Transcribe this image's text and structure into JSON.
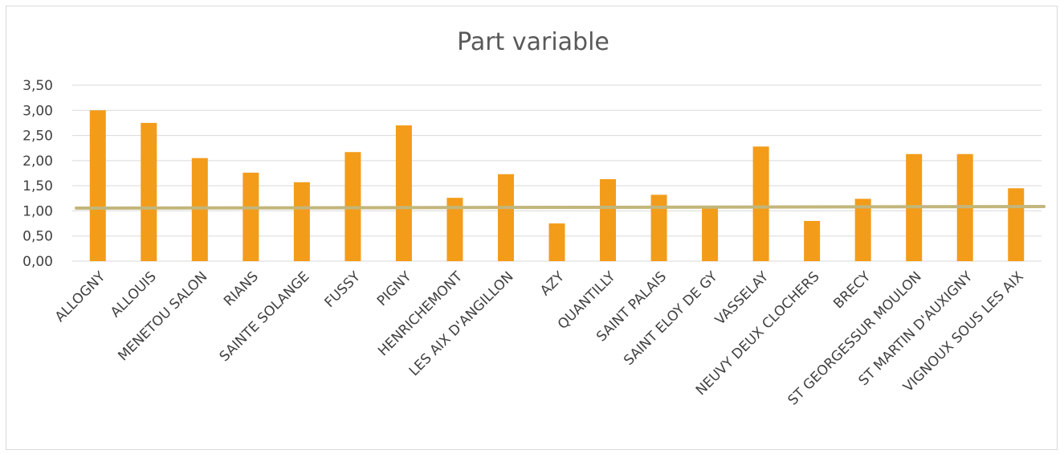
{
  "chart_data": {
    "type": "bar",
    "title": "Part variable",
    "xlabel": "",
    "ylabel": "",
    "ylim": [
      0,
      3.5
    ],
    "yticks": [
      "0,00",
      "0,50",
      "1,00",
      "1,50",
      "2,00",
      "2,50",
      "3,00",
      "3,50"
    ],
    "grid": true,
    "legend": "none",
    "categories": [
      "ALLOGNY",
      "ALLOUIS",
      "MENETOU SALON",
      "RIANS",
      "SAINTE SOLANGE",
      "FUSSY",
      "PIGNY",
      "HENRICHEMONT",
      "LES AIX D'ANGILLON",
      "AZY",
      "QUANTILLY",
      "SAINT PALAIS",
      "SAINT ELOY DE GY",
      "VASSELAY",
      "NEUVY DEUX CLOCHERS",
      "BRECY",
      "ST GEORGESSUR MOULON",
      "ST MARTIN D'AUXIGNY",
      "VIGNOUX SOUS LES AIX"
    ],
    "values": [
      3.0,
      2.75,
      2.05,
      1.76,
      1.57,
      2.17,
      2.7,
      1.26,
      1.73,
      0.75,
      1.63,
      1.32,
      1.07,
      2.28,
      0.8,
      1.24,
      2.13,
      2.13,
      1.45
    ],
    "reference_line": {
      "value": 1.07
    },
    "colors": {
      "bar": "#F39C1A",
      "reference_line": "#C2B67B",
      "grid": "#D9D9D9"
    }
  }
}
